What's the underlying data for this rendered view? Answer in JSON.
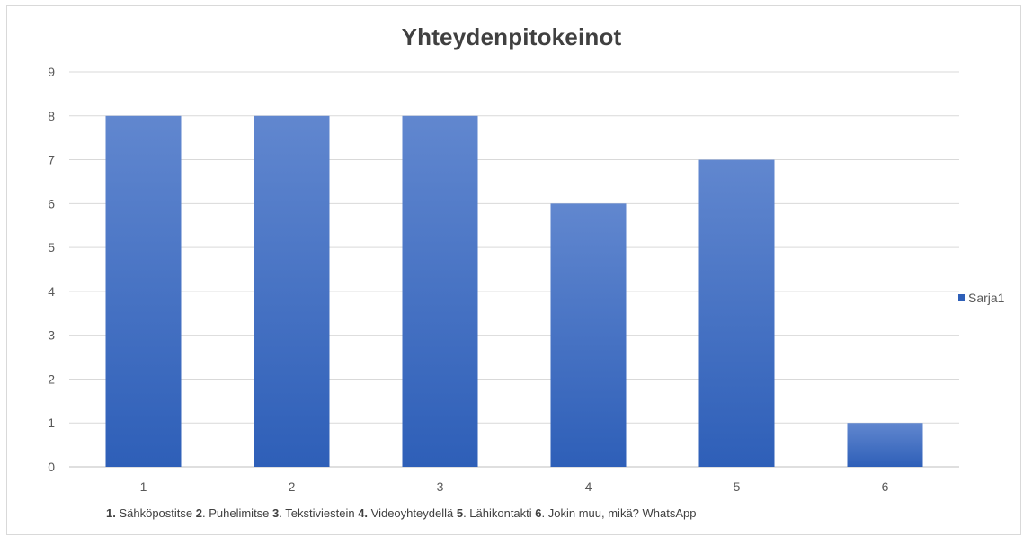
{
  "chart_data": {
    "type": "bar",
    "title": "Yhteydenpitokeinot",
    "categories": [
      "1",
      "2",
      "3",
      "4",
      "5",
      "6"
    ],
    "series": [
      {
        "name": "Sarja1",
        "values": [
          8,
          8,
          8,
          6,
          7,
          1
        ]
      }
    ],
    "ylim": [
      0,
      9
    ],
    "yticks": [
      0,
      1,
      2,
      3,
      4,
      5,
      6,
      7,
      8,
      9
    ],
    "grid": true,
    "legend": "right",
    "colors": {
      "bar_top": "#6187cf",
      "bar_bottom": "#2e5fb8",
      "grid": "#d9d9d9",
      "axis": "#bfbfbf"
    }
  },
  "caption": {
    "items": [
      {
        "num": "1.",
        "text": " Sähköpostitse"
      },
      {
        "num": "2",
        "text": ". Puhelimitse"
      },
      {
        "num": "3",
        "text": ". Tekstiviestein"
      },
      {
        "num": "4.",
        "text": " Videoyhteydellä"
      },
      {
        "num": "5",
        "text": ". Lähikontakti"
      },
      {
        "num": "6",
        "text": ". Jokin muu, mikä? WhatsApp"
      }
    ]
  }
}
